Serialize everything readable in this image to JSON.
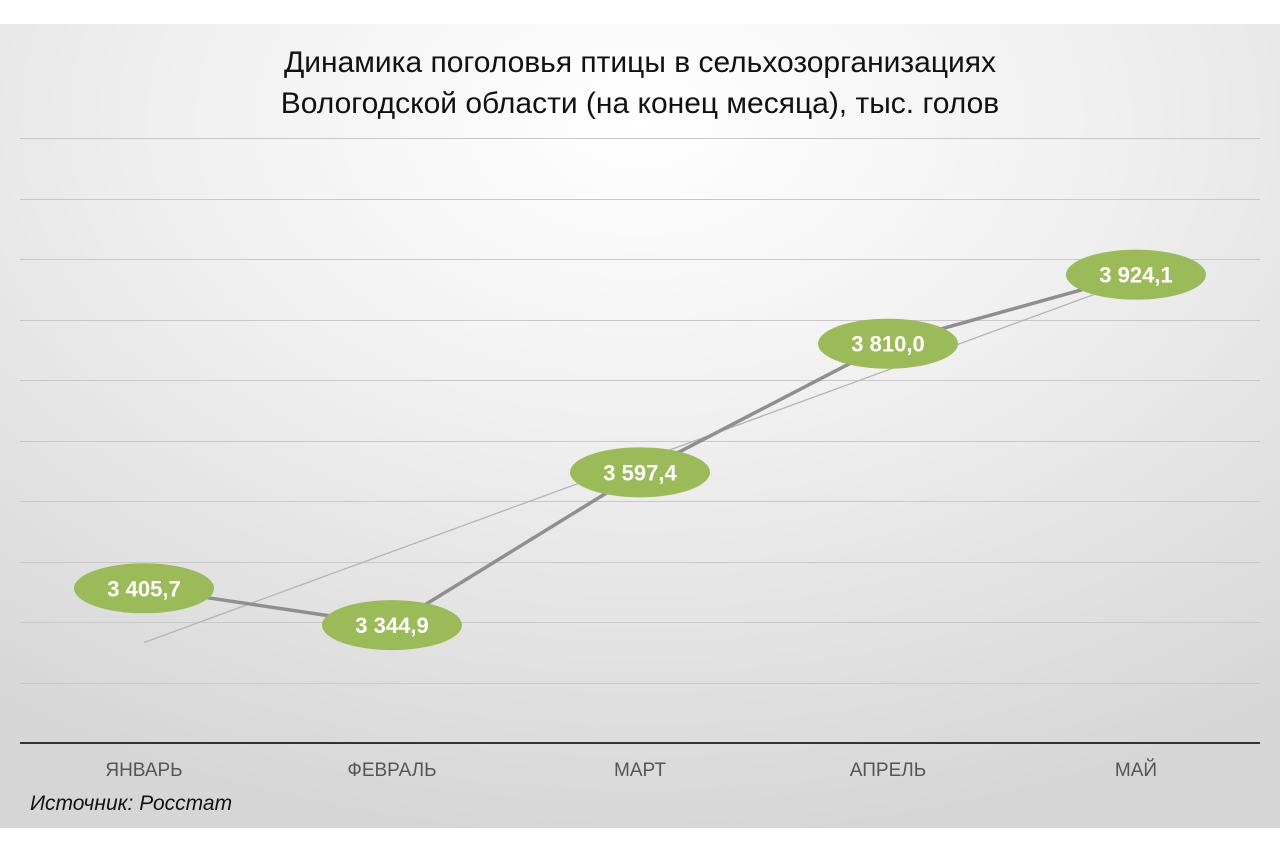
{
  "chart_data": {
    "type": "line",
    "title": "Динамика поголовья птицы в сельхозорганизациях",
    "subtitle": "Вологодской области (на конец месяца), тыс. голов",
    "categories": [
      "ЯНВАРЬ",
      "ФЕВРАЛЬ",
      "МАРТ",
      "АПРЕЛЬ",
      "МАЙ"
    ],
    "series": [
      {
        "values": [
          3405.7,
          3344.9,
          3597.4,
          3810.0,
          3924.1
        ],
        "data_labels": [
          "3 405,7",
          "3 344,9",
          "3 597,4",
          "3 810,0",
          "3 924,1"
        ]
      }
    ],
    "trendline": "linear",
    "ylim": [
      3150,
      4150
    ],
    "grid": true,
    "y_axis_labels_shown": false,
    "legend": "none",
    "colors": {
      "line": "#8f8f8f",
      "trendline": "#b4b4b4",
      "label_fill": "#9bbb59",
      "label_text": "#ffffff",
      "gridline": "#c8c8c8",
      "axis": "#333333",
      "tick_text": "#555555"
    },
    "source": "Источник: Росстат"
  }
}
